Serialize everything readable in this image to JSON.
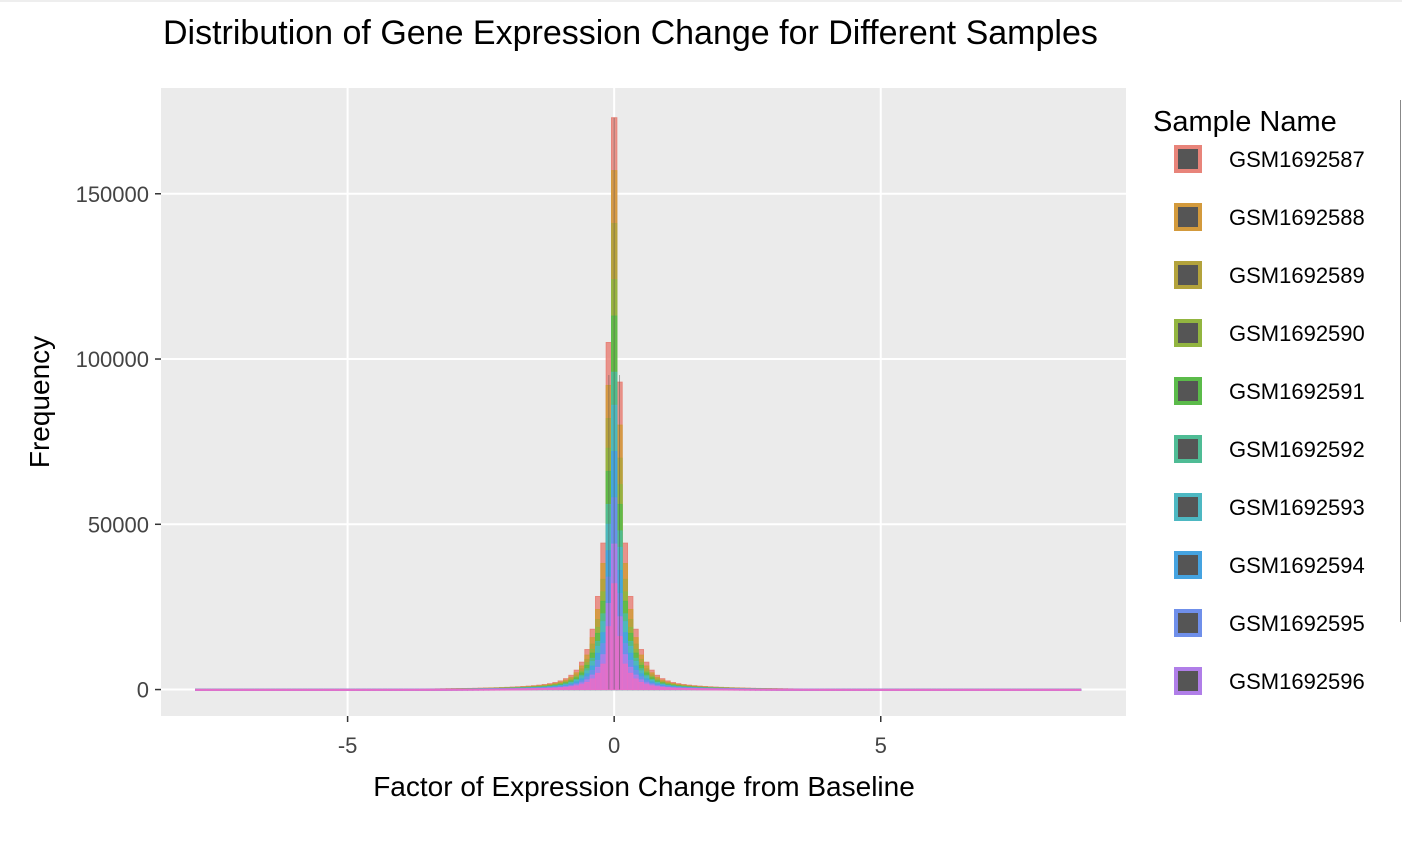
{
  "chart_data": {
    "type": "histogram",
    "title": "Distribution of Gene Expression Change for Different Samples",
    "xlabel": "Factor of Expression Change from Baseline",
    "ylabel": "Frequency",
    "xlim": [
      -8.5,
      9.6
    ],
    "ylim": [
      -8000,
      182000
    ],
    "x_ticks": [
      -5,
      0,
      5
    ],
    "x_tick_labels": [
      "-5",
      "0",
      "5"
    ],
    "y_ticks": [
      0,
      50000,
      100000,
      150000
    ],
    "y_tick_labels": [
      "0",
      "50000",
      "100000",
      "150000"
    ],
    "grid": true,
    "bin_width": 0.1,
    "x_range": [
      -7.8,
      8.7
    ],
    "legend": {
      "title": "Sample Name",
      "position": "right"
    },
    "series": [
      {
        "name": "GSM1692587",
        "color": "#E8847A",
        "peak": 173000,
        "shoulder": 105000,
        "side": 93000
      },
      {
        "name": "GSM1692588",
        "color": "#D39A3C",
        "peak": 157000,
        "shoulder": 92000,
        "side": 80000
      },
      {
        "name": "GSM1692589",
        "color": "#B3A33C",
        "peak": 141000,
        "shoulder": 82000,
        "side": 70000
      },
      {
        "name": "GSM1692590",
        "color": "#92B540",
        "peak": 124000,
        "shoulder": 73000,
        "side": 62000
      },
      {
        "name": "GSM1692591",
        "color": "#5BBB4A",
        "peak": 113000,
        "shoulder": 66000,
        "side": 56000
      },
      {
        "name": "GSM1692592",
        "color": "#4FBC95",
        "peak": 96000,
        "shoulder": 56000,
        "side": 48000
      },
      {
        "name": "GSM1692593",
        "color": "#4DB8C2",
        "peak": 86000,
        "shoulder": 50000,
        "side": 43000
      },
      {
        "name": "GSM1692594",
        "color": "#45A3E0",
        "peak": 72000,
        "shoulder": 42000,
        "side": 36000
      },
      {
        "name": "GSM1692595",
        "color": "#6F8FEA",
        "peak": 58000,
        "shoulder": 34000,
        "side": 29000
      },
      {
        "name": "GSM1692596",
        "color": "#B07EE8",
        "peak": 44000,
        "shoulder": 26000,
        "side": 22000
      },
      {
        "name": "",
        "color": "#E56FC8",
        "peak": 32000,
        "shoulder": 19000,
        "side": 16000
      }
    ]
  }
}
